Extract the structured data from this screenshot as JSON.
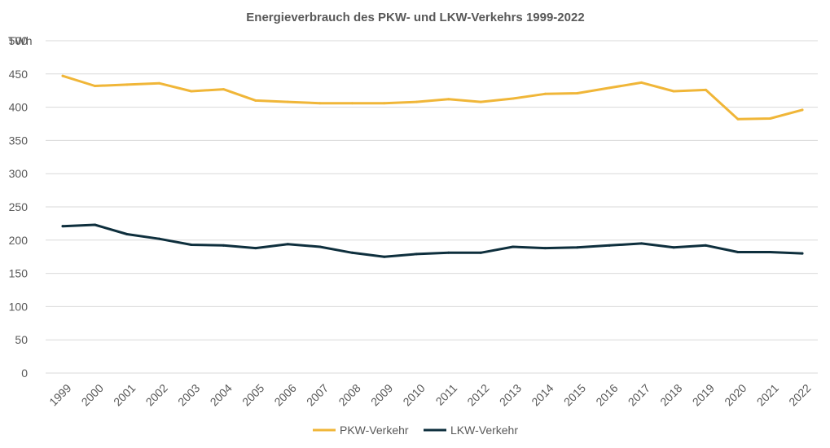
{
  "chart_data": {
    "type": "line",
    "title": "Energieverbrauch des PKW- und LKW-Verkehrs 1999-2022",
    "ylabel": "TWh",
    "xlabel": "",
    "ylim": [
      0,
      500
    ],
    "yticks": [
      0,
      50,
      100,
      150,
      200,
      250,
      300,
      350,
      400,
      450,
      500
    ],
    "grid": true,
    "legend_position": "bottom-center",
    "categories": [
      "1999",
      "2000",
      "2001",
      "2002",
      "2003",
      "2004",
      "2005",
      "2006",
      "2007",
      "2008",
      "2009",
      "2010",
      "2011",
      "2012",
      "2013",
      "2014",
      "2015",
      "2016",
      "2017",
      "2018",
      "2019",
      "2020",
      "2021",
      "2022"
    ],
    "series": [
      {
        "name": "PKW-Verkehr",
        "color": "#f0b638",
        "values": [
          447,
          432,
          434,
          436,
          424,
          427,
          410,
          408,
          406,
          406,
          406,
          408,
          412,
          408,
          413,
          420,
          421,
          429,
          437,
          424,
          426,
          382,
          383,
          396
        ]
      },
      {
        "name": "LKW-Verkehr",
        "color": "#0e2f3d",
        "values": [
          221,
          223,
          209,
          202,
          193,
          192,
          188,
          194,
          190,
          181,
          175,
          179,
          181,
          181,
          190,
          188,
          189,
          192,
          195,
          189,
          192,
          182,
          182,
          180
        ]
      }
    ]
  }
}
